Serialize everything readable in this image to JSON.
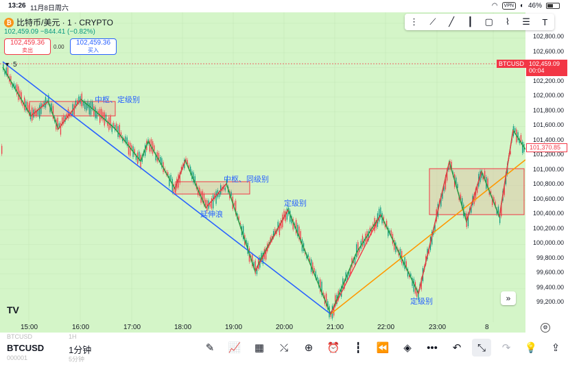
{
  "statusbar": {
    "time": "13:26",
    "date": "11月8日周六",
    "vpn": "VPN",
    "battery": "46%"
  },
  "symbol": {
    "name": "比特币/美元 · 1 · CRYPTO",
    "icon": "bitcoin-icon",
    "price_line": "102,459.09  −844.41 (−0.82%)"
  },
  "trade": {
    "sell_price": "102,459.36",
    "sell_label": "卖出",
    "spread": "0.00",
    "buy_price": "102,459.36",
    "buy_label": "买入"
  },
  "collapse": {
    "chevron": "▾",
    "count": "5"
  },
  "drawing_tools": [
    "dots-icon",
    "trend-line-icon",
    "line-icon",
    "vertical-line-icon",
    "rectangle-icon",
    "path-icon",
    "fib-icon",
    "text-icon"
  ],
  "price_axis": {
    "labels": [
      "102,800.00",
      "102,600.00",
      "102,400.00",
      "102,200.00",
      "102,000.00",
      "101,800.00",
      "101,600.00",
      "101,400.00",
      "101,200.00",
      "101,000.00",
      "100,800.00",
      "100,600.00",
      "100,400.00",
      "100,200.00",
      "100,000.00",
      "99,800.00",
      "99,600.00",
      "99,400.00",
      "99,200.00"
    ],
    "current_price": "102,459.09",
    "countdown": "00:04",
    "marker_price": "101,370.85",
    "symbol_tag": "BTCUSD"
  },
  "time_axis": [
    "15:00",
    "16:00",
    "17:00",
    "18:00",
    "19:00",
    "20:00",
    "21:00",
    "22:00",
    "23:00",
    "8"
  ],
  "annotations": {
    "a1": "中枢、定级别",
    "a2": "中枢、同级别",
    "a3": "延伸浪",
    "a4": "定级别",
    "a5": "定级别"
  },
  "logo": "TV",
  "bottom": {
    "symbol": "BTCUSD",
    "interval": "1分钟",
    "ghost_symbol_above": "BTCUSD",
    "ghost_symbol_below": "000001",
    "ghost_interval_above": "1H",
    "ghost_interval_below": "5分钟",
    "icons": [
      "pencil-icon",
      "indicators-icon",
      "templates-icon",
      "compare-icon",
      "add-icon",
      "alert-icon",
      "replay-icon",
      "rewind-icon",
      "layers-icon",
      "more-icon",
      "undo-icon",
      "fullscreen-exit-icon",
      "redo-icon",
      "lightbulb-icon",
      "share-icon"
    ]
  },
  "colors": {
    "bg_chart": "#d4f5c8",
    "up": "#089981",
    "down": "#f23645",
    "blue_line": "#2962ff",
    "orange_line": "#ff9800",
    "green_stroke": "#2e9e48",
    "red_stroke": "#f23645"
  }
}
